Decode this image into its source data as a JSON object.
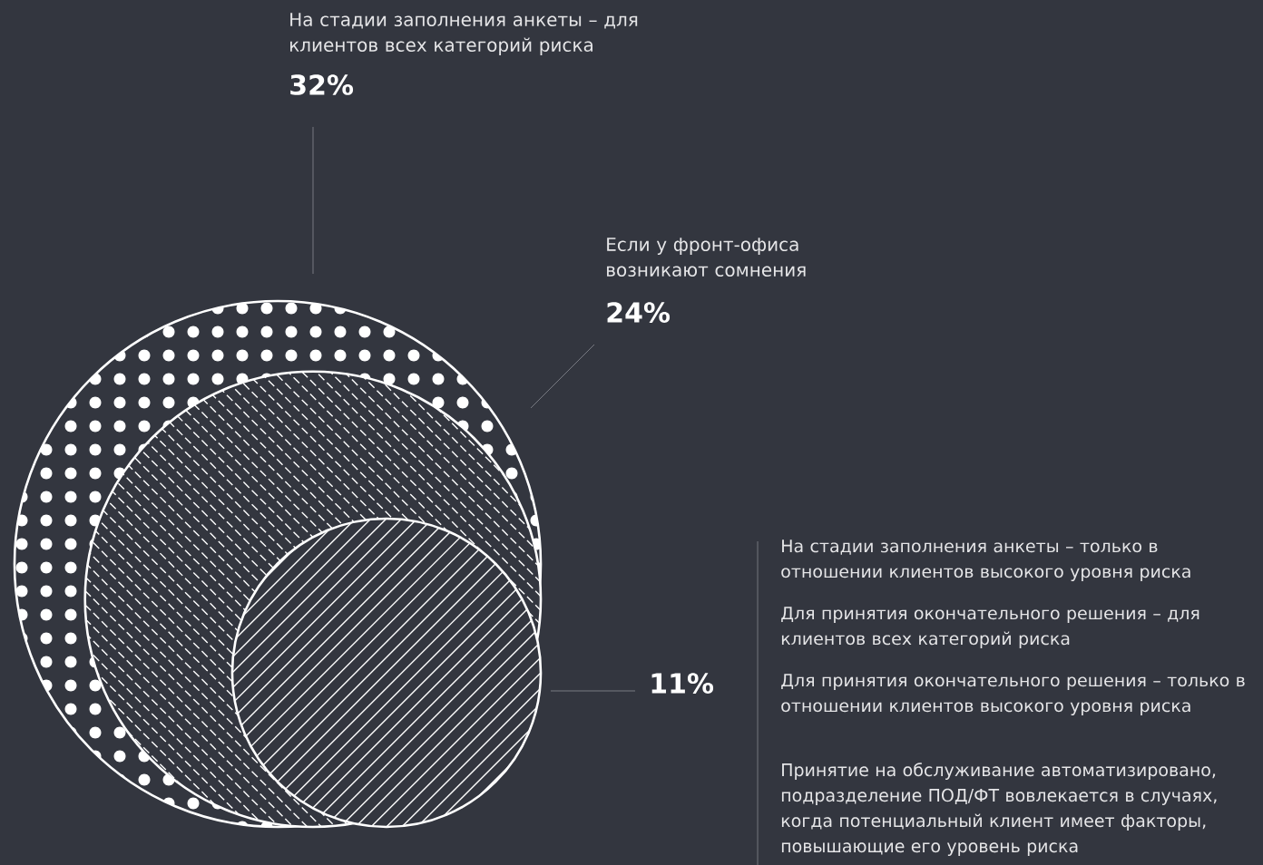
{
  "chart_data": {
    "type": "other",
    "categories": [
      "На стадии заполнения анкеты – для клиентов всех категорий риска",
      "Если у фронт-офиса возникают сомнения",
      null
    ],
    "values": [
      32,
      24,
      11
    ],
    "value_labels": [
      "32%",
      "24%",
      "11%"
    ],
    "colors": [
      "#ffffff",
      "#ffffff",
      "#ffffff"
    ],
    "annotations": [
      "На стадии заполнения анкеты – только в отношении клиентов высокого уровня риска",
      "Для принятия окончательного решения – для клиентов всех категорий риска",
      "Для принятия окончательного решения – только в отношении клиентов высокого уровня риска",
      "Принятие на обслуживание автоматизировано, подразделение ПОД/ФТ вовлекается в случаях, когда потенциальный клиент имеет факторы, повышающие его уровень риска"
    ]
  }
}
